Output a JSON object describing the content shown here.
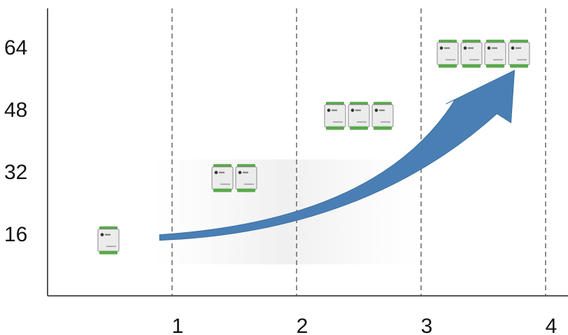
{
  "chart_data": {
    "type": "scatter",
    "title": "",
    "xlabel": "",
    "ylabel": "",
    "x_ticks": [
      "1",
      "2",
      "3",
      "4"
    ],
    "y_ticks": [
      "16",
      "32",
      "48",
      "64"
    ],
    "xlim": [
      0,
      4.2
    ],
    "ylim": [
      0,
      74
    ],
    "grid": {
      "x_dashed_vertical": true,
      "y": false
    },
    "colors": {
      "trend_arrow": "#4a7fb5",
      "module_body": "#ececec",
      "module_pins": "#5aa84a",
      "gridline": "#666666"
    },
    "series": [
      {
        "values": [
          {
            "x": 0.5,
            "y": 15,
            "modules": 1
          },
          {
            "x": 1.5,
            "y": 31,
            "modules": 2
          },
          {
            "x": 2.5,
            "y": 47,
            "modules": 3
          },
          {
            "x": 3.5,
            "y": 63,
            "modules": 4
          }
        ]
      }
    ],
    "trend_arrow": {
      "from": {
        "x": 0.9,
        "y": 15
      },
      "to": {
        "x": 3.75,
        "y": 58
      }
    }
  }
}
